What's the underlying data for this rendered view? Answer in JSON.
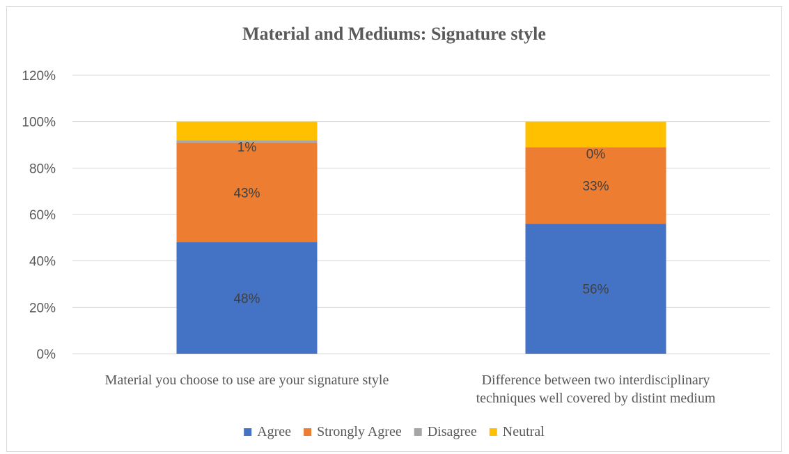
{
  "chart_data": {
    "type": "bar",
    "stacked": true,
    "title": "Material and Mediums: Signature style",
    "categories": [
      [
        "Material you choose to use are your signature style"
      ],
      [
        "Difference between two interdisciplinary",
        "techniques well covered by distint medium"
      ]
    ],
    "series": [
      {
        "name": "Agree",
        "color": "#4472C4",
        "values": [
          48,
          56
        ],
        "labels": [
          "48%",
          "56%"
        ]
      },
      {
        "name": "Strongly Agree",
        "color": "#ED7D31",
        "values": [
          43,
          33
        ],
        "labels": [
          "43%",
          "33%"
        ]
      },
      {
        "name": "Disagree",
        "color": "#A5A5A5",
        "values": [
          1,
          0
        ],
        "labels": [
          "1%",
          "0%"
        ]
      },
      {
        "name": "Neutral",
        "color": "#FFC000",
        "values": [
          8,
          11
        ],
        "labels": [
          null,
          null
        ]
      }
    ],
    "ylim": [
      0,
      120
    ],
    "yticks": [
      0,
      20,
      40,
      60,
      80,
      100,
      120
    ],
    "ytick_labels": [
      "0%",
      "20%",
      "40%",
      "60%",
      "80%",
      "100%",
      "120%"
    ],
    "grid": true,
    "legend_position": "bottom"
  }
}
